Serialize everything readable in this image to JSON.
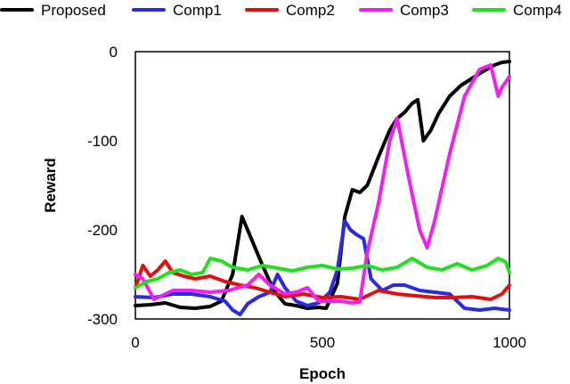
{
  "chart_data": {
    "type": "line",
    "xlabel": "Epoch",
    "ylabel": "Reward",
    "xlim": [
      0,
      1000
    ],
    "ylim": [
      -300,
      0
    ],
    "xticks": [
      0,
      500,
      1000
    ],
    "yticks": [
      0,
      -100,
      -200,
      -300
    ],
    "grid": false,
    "legend_position": "top",
    "series": [
      {
        "name": "Proposed",
        "color": "#000000",
        "x": [
          0,
          40,
          80,
          120,
          160,
          200,
          230,
          260,
          285,
          310,
          340,
          370,
          400,
          430,
          460,
          490,
          510,
          540,
          560,
          580,
          600,
          620,
          650,
          680,
          700,
          720,
          740,
          755,
          770,
          790,
          810,
          840,
          870,
          900,
          930,
          960,
          980,
          1000
        ],
        "y": [
          -285,
          -284,
          -282,
          -287,
          -288,
          -286,
          -280,
          -250,
          -185,
          -210,
          -240,
          -268,
          -283,
          -285,
          -288,
          -287,
          -288,
          -260,
          -185,
          -155,
          -158,
          -150,
          -118,
          -88,
          -75,
          -68,
          -58,
          -54,
          -100,
          -88,
          -70,
          -50,
          -38,
          -30,
          -22,
          -15,
          -12,
          -11
        ]
      },
      {
        "name": "Comp1",
        "color": "#2a2adf",
        "x": [
          0,
          50,
          100,
          150,
          200,
          240,
          260,
          280,
          300,
          330,
          360,
          380,
          400,
          430,
          460,
          490,
          520,
          540,
          560,
          575,
          590,
          610,
          630,
          660,
          690,
          720,
          760,
          800,
          840,
          880,
          920,
          960,
          1000
        ],
        "y": [
          -275,
          -276,
          -272,
          -272,
          -275,
          -280,
          -290,
          -295,
          -283,
          -275,
          -270,
          -250,
          -265,
          -280,
          -285,
          -282,
          -270,
          -245,
          -190,
          -200,
          -205,
          -210,
          -255,
          -268,
          -262,
          -262,
          -268,
          -270,
          -272,
          -288,
          -290,
          -288,
          -290
        ]
      },
      {
        "name": "Comp2",
        "color": "#e01010",
        "x": [
          0,
          20,
          40,
          60,
          80,
          100,
          130,
          160,
          200,
          240,
          280,
          320,
          360,
          400,
          450,
          500,
          550,
          600,
          650,
          700,
          750,
          800,
          850,
          900,
          950,
          980,
          1000
        ],
        "y": [
          -265,
          -240,
          -252,
          -245,
          -235,
          -248,
          -252,
          -255,
          -252,
          -258,
          -262,
          -265,
          -270,
          -275,
          -272,
          -276,
          -275,
          -278,
          -268,
          -272,
          -274,
          -276,
          -276,
          -275,
          -278,
          -272,
          -262
        ]
      },
      {
        "name": "Comp3",
        "color": "#f020f0",
        "x": [
          0,
          20,
          50,
          100,
          150,
          200,
          250,
          300,
          330,
          360,
          400,
          430,
          460,
          490,
          520,
          550,
          580,
          600,
          620,
          650,
          680,
          700,
          730,
          760,
          780,
          800,
          840,
          880,
          920,
          950,
          970,
          980,
          1000
        ],
        "y": [
          -250,
          -255,
          -278,
          -268,
          -268,
          -270,
          -268,
          -262,
          -250,
          -262,
          -272,
          -270,
          -265,
          -280,
          -280,
          -280,
          -282,
          -281,
          -225,
          -170,
          -100,
          -75,
          -140,
          -200,
          -220,
          -190,
          -115,
          -50,
          -20,
          -15,
          -50,
          -40,
          -28
        ]
      },
      {
        "name": "Comp4",
        "color": "#20e020",
        "x": [
          0,
          30,
          60,
          90,
          120,
          150,
          180,
          200,
          230,
          260,
          300,
          340,
          380,
          420,
          460,
          500,
          540,
          580,
          620,
          660,
          700,
          740,
          780,
          820,
          860,
          900,
          940,
          970,
          990,
          1000
        ],
        "y": [
          -265,
          -258,
          -255,
          -248,
          -245,
          -250,
          -248,
          -232,
          -235,
          -242,
          -245,
          -240,
          -243,
          -246,
          -242,
          -240,
          -244,
          -243,
          -240,
          -245,
          -242,
          -232,
          -242,
          -245,
          -238,
          -245,
          -240,
          -232,
          -236,
          -248
        ]
      }
    ]
  }
}
